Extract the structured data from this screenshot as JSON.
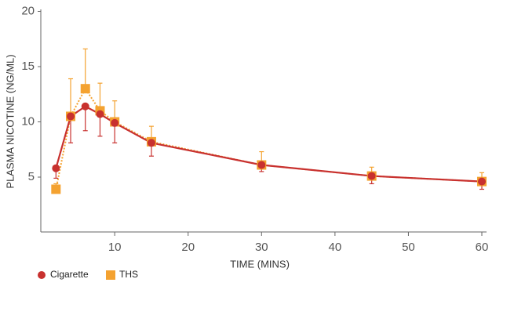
{
  "chart_data": {
    "type": "line",
    "x_label": "TIME (MINS)",
    "y_label": "PLASMA NICOTINE (NG/ML)",
    "xlim": [
      0,
      60
    ],
    "xticks": [
      10,
      20,
      30,
      40,
      50,
      60
    ],
    "ylim": [
      0,
      20
    ],
    "yticks": [
      5,
      10,
      15,
      20
    ],
    "series": [
      {
        "name": "THS",
        "color": "#f4a230",
        "marker": "square",
        "line_style": "dotted",
        "error_direction": "up",
        "x": [
          2,
          4,
          6,
          8,
          10,
          15,
          30,
          45,
          60
        ],
        "values": [
          3.9,
          10.5,
          13.0,
          11.0,
          10.0,
          8.2,
          6.1,
          5.1,
          4.6
        ],
        "errors": [
          0.5,
          3.4,
          3.6,
          2.5,
          1.9,
          1.4,
          1.2,
          0.8,
          0.8
        ]
      },
      {
        "name": "Cigarette",
        "color": "#c8312f",
        "marker": "circle",
        "line_style": "solid",
        "error_direction": "down",
        "x": [
          2,
          4,
          6,
          8,
          10,
          15,
          30,
          45,
          60
        ],
        "values": [
          5.8,
          10.5,
          11.4,
          10.7,
          9.9,
          8.1,
          6.1,
          5.1,
          4.6
        ],
        "errors": [
          0.9,
          2.4,
          2.2,
          2.0,
          1.8,
          1.2,
          0.6,
          0.7,
          0.7
        ]
      }
    ],
    "legend_order": [
      1,
      0
    ]
  }
}
